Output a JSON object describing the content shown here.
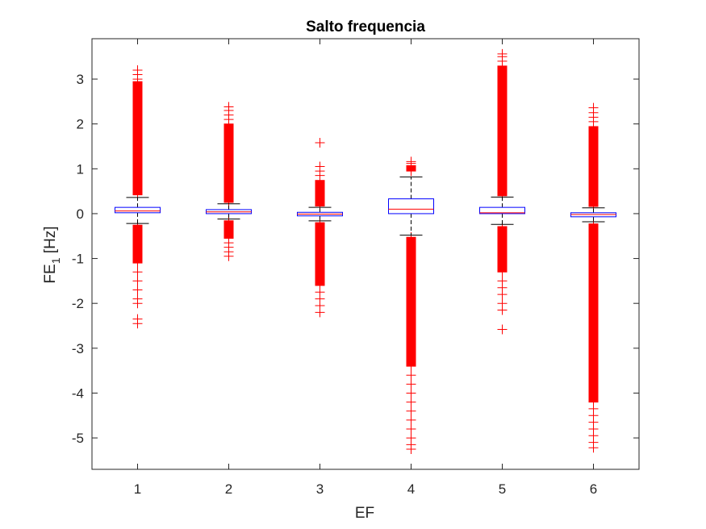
{
  "chart_data": {
    "type": "boxplot",
    "title": "Salto frequencia",
    "xlabel": "EF",
    "ylabel_main": "FE",
    "ylabel_sub": "1",
    "ylabel_unit": " [Hz]",
    "categories": [
      "1",
      "2",
      "3",
      "4",
      "5",
      "6"
    ],
    "ylim": [
      -5.7,
      3.9
    ],
    "yticks": [
      -5,
      -4,
      -3,
      -2,
      -1,
      0,
      1,
      2,
      3
    ],
    "grid": false,
    "colors": {
      "box": "#0000ff",
      "median": "#ff0000",
      "outlier": "#ff0000",
      "whisker": "#000000",
      "axis": "#262626"
    },
    "boxes": [
      {
        "category": "1",
        "q1": 0.02,
        "median": 0.06,
        "q3": 0.14,
        "whisker_low": -0.22,
        "whisker_high": 0.36,
        "outlier_upper_dense": [
          0.42,
          2.95
        ],
        "outlier_upper_extra": [
          3.0,
          3.1,
          3.2
        ],
        "outlier_lower_dense": [
          -1.1,
          -0.25
        ],
        "outlier_lower_extra": [
          -1.3,
          -1.5,
          -1.7,
          -1.9,
          -2.0,
          -2.35,
          -2.45
        ]
      },
      {
        "category": "2",
        "q1": 0.0,
        "median": 0.04,
        "q3": 0.09,
        "whisker_low": -0.12,
        "whisker_high": 0.22,
        "outlier_upper_dense": [
          0.25,
          2.0
        ],
        "outlier_upper_extra": [
          2.1,
          2.2,
          2.3,
          2.38
        ],
        "outlier_lower_dense": [
          -0.55,
          -0.15
        ],
        "outlier_lower_extra": [
          -0.65,
          -0.75,
          -0.85,
          -0.95
        ]
      },
      {
        "category": "3",
        "q1": -0.05,
        "median": -0.01,
        "q3": 0.03,
        "whisker_low": -0.16,
        "whisker_high": 0.14,
        "outlier_upper_dense": [
          0.17,
          0.75
        ],
        "outlier_upper_extra": [
          0.85,
          0.95,
          1.05,
          1.58
        ],
        "outlier_lower_dense": [
          -1.6,
          -0.2
        ],
        "outlier_lower_extra": [
          -1.75,
          -1.9,
          -2.05,
          -2.2
        ]
      },
      {
        "category": "4",
        "q1": 0.0,
        "median": 0.1,
        "q3": 0.33,
        "whisker_low": -0.48,
        "whisker_high": 0.82,
        "outlier_upper_dense": [
          0.95,
          1.08
        ],
        "outlier_upper_extra": [
          1.12,
          1.16
        ],
        "outlier_lower_dense": [
          -3.4,
          -0.52
        ],
        "outlier_lower_extra": [
          -3.6,
          -3.8,
          -4.0,
          -4.2,
          -4.4,
          -4.6,
          -4.8,
          -5.0,
          -5.15,
          -5.25
        ]
      },
      {
        "category": "5",
        "q1": 0.0,
        "median": 0.02,
        "q3": 0.14,
        "whisker_low": -0.24,
        "whisker_high": 0.37,
        "outlier_upper_dense": [
          0.4,
          3.3
        ],
        "outlier_upper_extra": [
          3.4,
          3.5,
          3.56
        ],
        "outlier_lower_dense": [
          -1.3,
          -0.28
        ],
        "outlier_lower_extra": [
          -1.5,
          -1.65,
          -1.8,
          -2.0,
          -2.15,
          -2.58
        ]
      },
      {
        "category": "6",
        "q1": -0.07,
        "median": -0.02,
        "q3": 0.02,
        "whisker_low": -0.18,
        "whisker_high": 0.13,
        "outlier_upper_dense": [
          0.16,
          1.95
        ],
        "outlier_upper_extra": [
          2.05,
          2.15,
          2.25,
          2.36
        ],
        "outlier_lower_dense": [
          -4.2,
          -0.22
        ],
        "outlier_lower_extra": [
          -4.35,
          -4.5,
          -4.65,
          -4.8,
          -4.95,
          -5.1,
          -5.22
        ]
      }
    ]
  }
}
